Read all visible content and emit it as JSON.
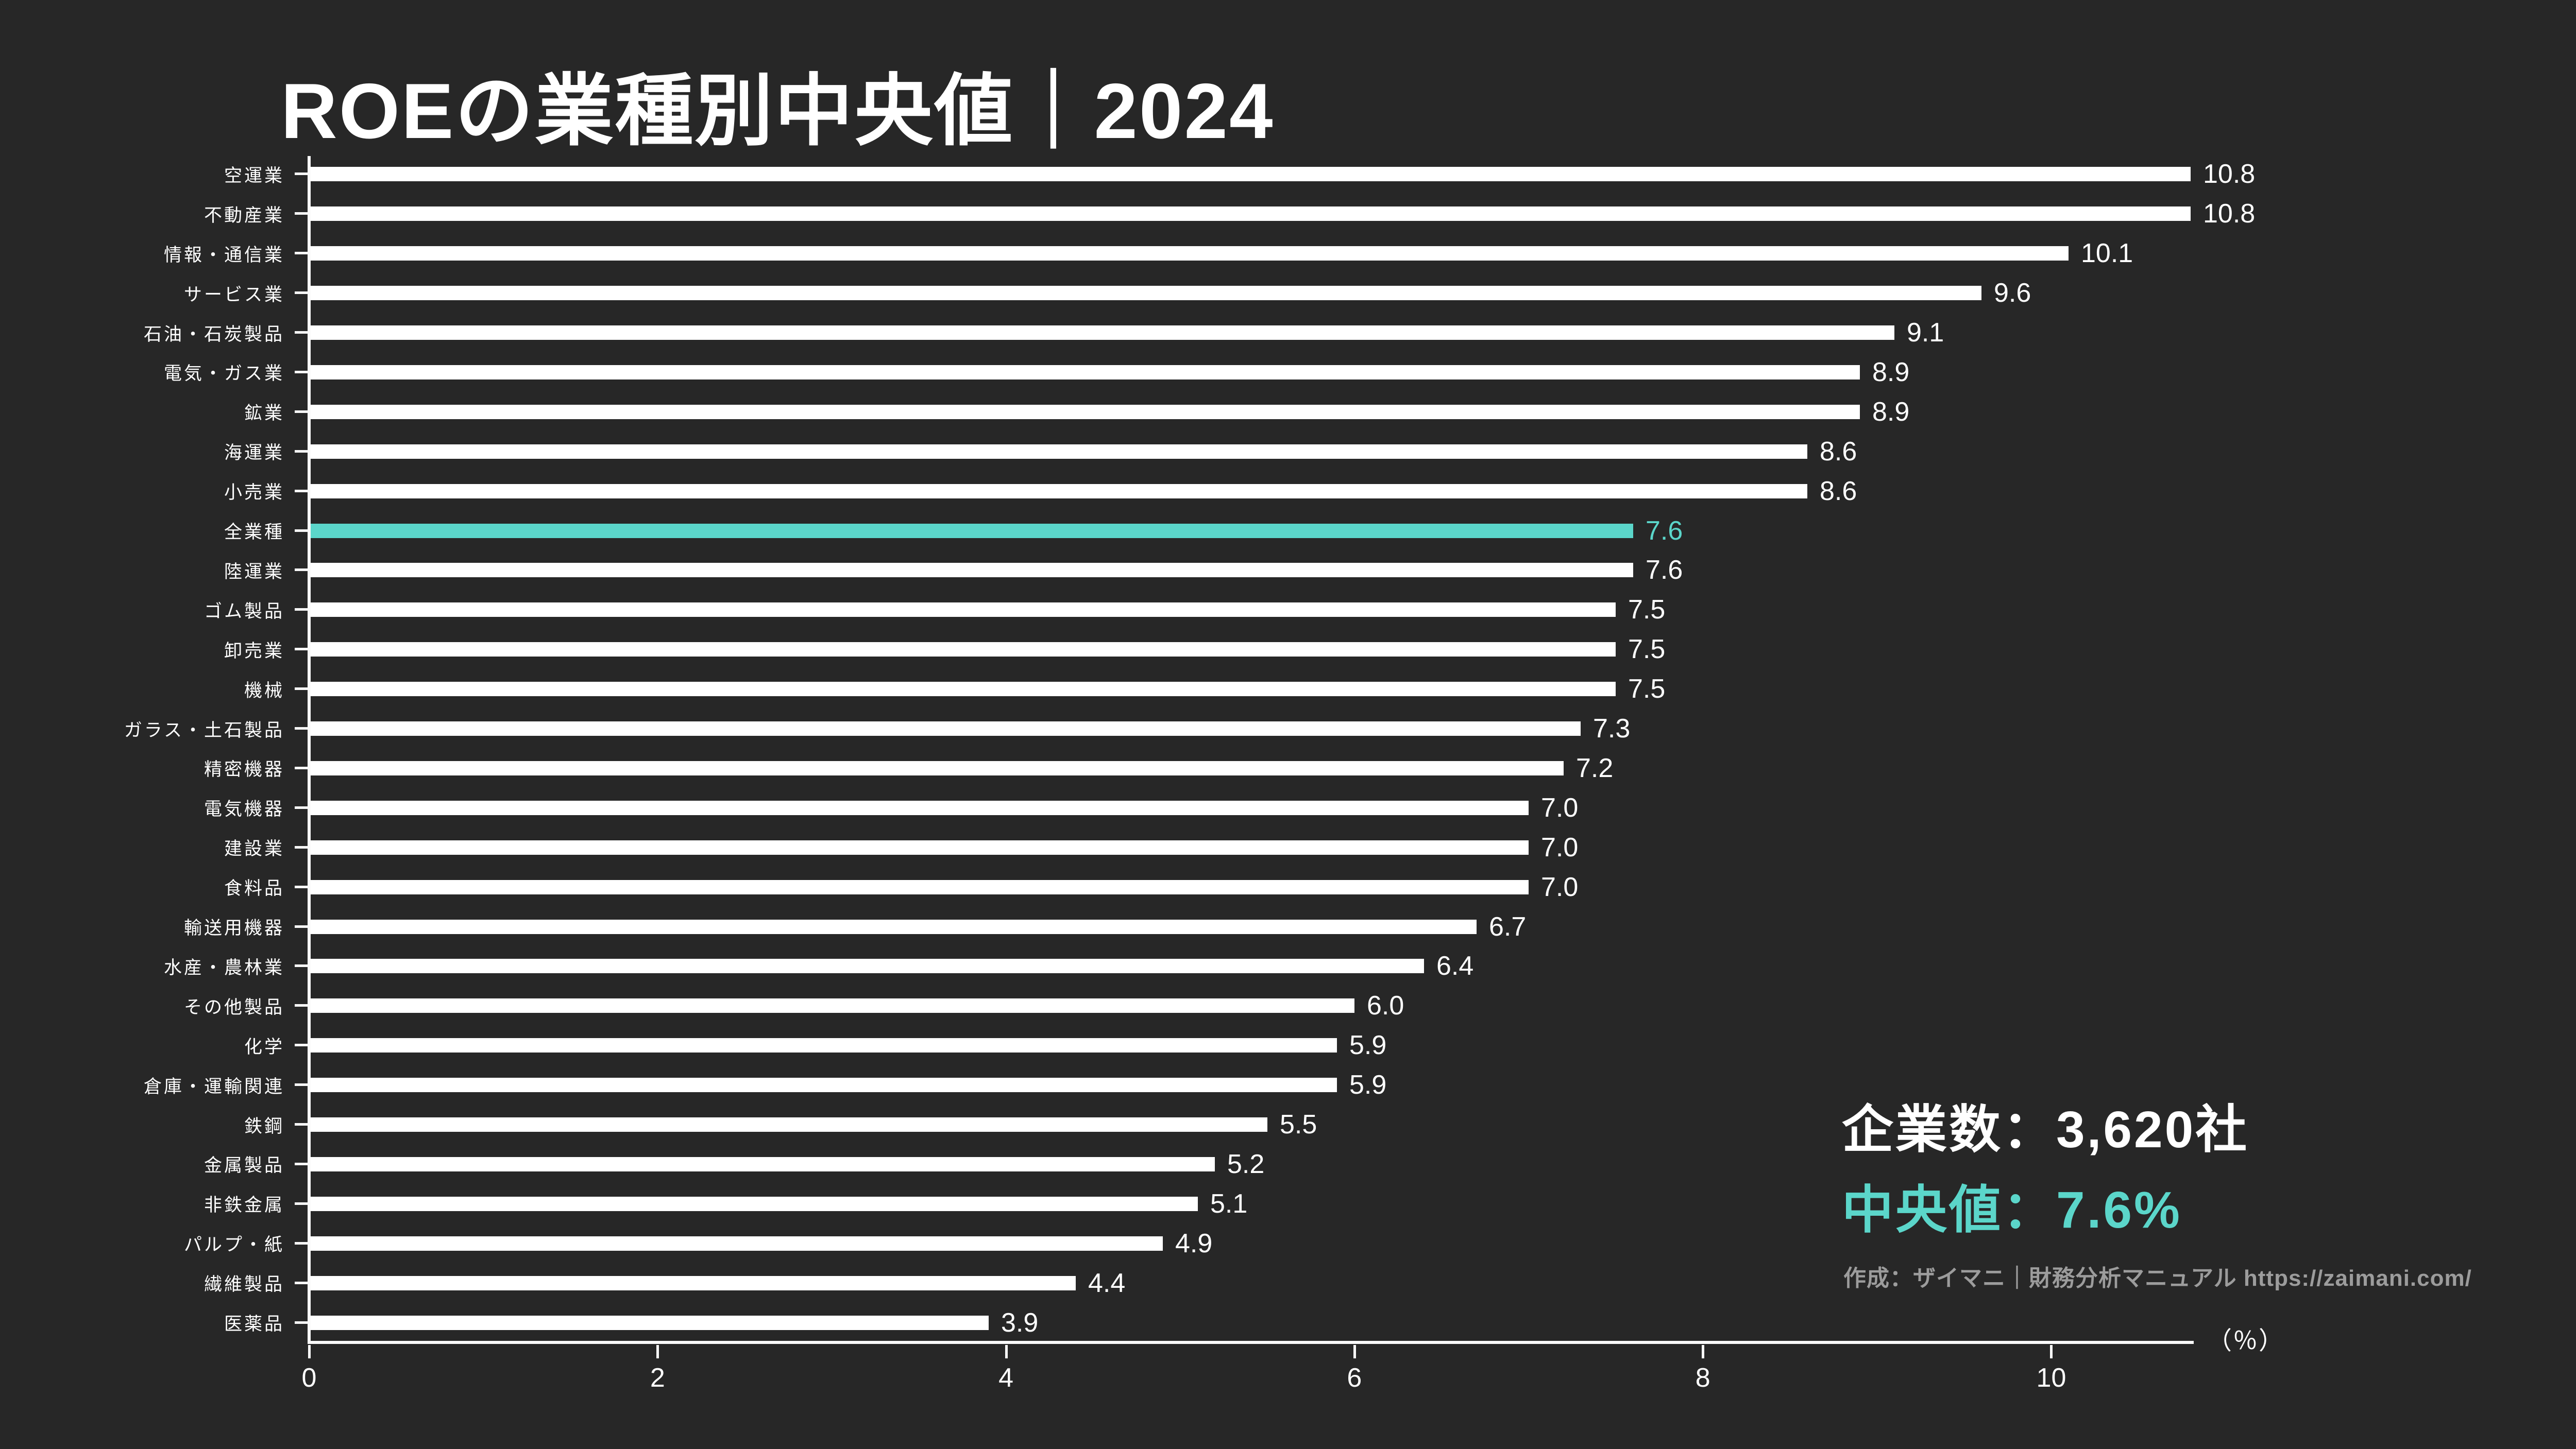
{
  "title": "ROEの業種別中央値｜2024",
  "chart_data": {
    "type": "bar",
    "orientation": "horizontal",
    "title": "ROEの業種別中央値｜2024",
    "categories": [
      "空運業",
      "不動産業",
      "情報・通信業",
      "サービス業",
      "石油・石炭製品",
      "電気・ガス業",
      "鉱業",
      "海運業",
      "小売業",
      "全業種",
      "陸運業",
      "ゴム製品",
      "卸売業",
      "機械",
      "ガラス・土石製品",
      "精密機器",
      "電気機器",
      "建設業",
      "食料品",
      "輸送用機器",
      "水産・農林業",
      "その他製品",
      "化学",
      "倉庫・運輸関連",
      "鉄鋼",
      "金属製品",
      "非鉄金属",
      "パルプ・紙",
      "繊維製品",
      "医薬品"
    ],
    "values": [
      10.8,
      10.8,
      10.1,
      9.6,
      9.1,
      8.9,
      8.9,
      8.6,
      8.6,
      7.6,
      7.6,
      7.5,
      7.5,
      7.5,
      7.3,
      7.2,
      7.0,
      7.0,
      7.0,
      6.7,
      6.4,
      6.0,
      5.9,
      5.9,
      5.5,
      5.2,
      5.1,
      4.9,
      4.4,
      3.9
    ],
    "highlight_category": "全業種",
    "highlight_index": 9,
    "x_ticks": [
      0,
      2,
      4,
      6,
      8,
      10
    ],
    "xlim": [
      0,
      10.8
    ],
    "xlabel": "（％）",
    "grid": false,
    "legend": false,
    "bar_color": "#ffffff",
    "highlight_color": "#5BD6CA",
    "background_color": "#272727"
  },
  "stats": {
    "companies": "企業数：3,620社",
    "median": "中央値：7.6%",
    "credit": "作成：ザイマニ｜財務分析マニュアル https://zaimani.com/"
  }
}
